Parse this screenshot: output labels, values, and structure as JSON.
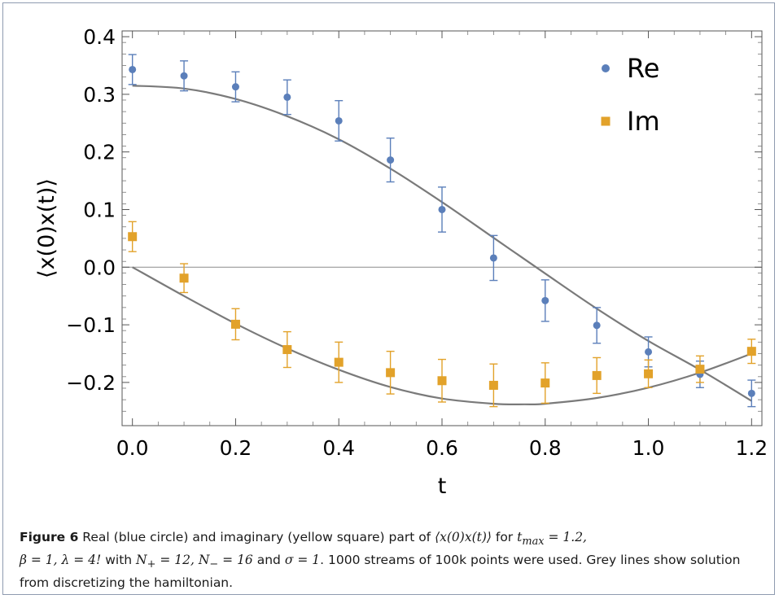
{
  "chart_data": {
    "type": "scatter",
    "xlabel": "t",
    "ylabel": "⟨x(0)x(t)⟩",
    "xlim": [
      -0.02,
      1.22
    ],
    "ylim": [
      -0.275,
      0.41
    ],
    "xticks": [
      0.0,
      0.2,
      0.4,
      0.6,
      0.8,
      1.0,
      1.2
    ],
    "xtick_labels": [
      "0.0",
      "0.2",
      "0.4",
      "0.6",
      "0.8",
      "1.0",
      "1.2"
    ],
    "yticks": [
      0.4,
      0.3,
      0.2,
      0.1,
      0.0,
      -0.1,
      -0.2
    ],
    "ytick_labels": [
      "0.4",
      "0.3",
      "0.2",
      "0.1",
      "0.0",
      "−0.1",
      "−0.2"
    ],
    "legend_position": "top-right",
    "series": [
      {
        "name": "Re",
        "marker": "circle",
        "color": "#5b7fba",
        "x": [
          0.0,
          0.1,
          0.2,
          0.3,
          0.4,
          0.5,
          0.6,
          0.7,
          0.8,
          0.9,
          1.0,
          1.1,
          1.2
        ],
        "y": [
          0.343,
          0.332,
          0.313,
          0.295,
          0.254,
          0.186,
          0.1,
          0.016,
          -0.058,
          -0.101,
          -0.147,
          -0.186,
          -0.219
        ],
        "err": [
          0.026,
          0.026,
          0.026,
          0.03,
          0.035,
          0.038,
          0.039,
          0.039,
          0.036,
          0.031,
          0.026,
          0.023,
          0.023
        ]
      },
      {
        "name": "Im",
        "marker": "square",
        "color": "#e2a22a",
        "x": [
          0.0,
          0.1,
          0.2,
          0.3,
          0.4,
          0.5,
          0.6,
          0.7,
          0.8,
          0.9,
          1.0,
          1.1,
          1.2
        ],
        "y": [
          0.053,
          -0.019,
          -0.099,
          -0.143,
          -0.165,
          -0.183,
          -0.197,
          -0.205,
          -0.201,
          -0.188,
          -0.185,
          -0.177,
          -0.146
        ],
        "err": [
          0.026,
          0.025,
          0.027,
          0.031,
          0.035,
          0.037,
          0.037,
          0.037,
          0.035,
          0.031,
          0.024,
          0.023,
          0.021
        ]
      }
    ],
    "curves": [
      {
        "color": "#7a7a7a",
        "x": [
          0.0,
          0.1,
          0.2,
          0.3,
          0.4,
          0.5,
          0.6,
          0.7,
          0.8,
          0.9,
          1.0,
          1.1,
          1.2
        ],
        "y": [
          0.315,
          0.31,
          0.292,
          0.262,
          0.222,
          0.171,
          0.113,
          0.051,
          -0.011,
          -0.072,
          -0.128,
          -0.178,
          -0.232
        ]
      },
      {
        "color": "#7a7a7a",
        "x": [
          0.0,
          0.1,
          0.2,
          0.3,
          0.4,
          0.5,
          0.6,
          0.7,
          0.76,
          0.8,
          0.9,
          1.0,
          1.1,
          1.2
        ],
        "y": [
          0.0,
          -0.05,
          -0.098,
          -0.141,
          -0.178,
          -0.208,
          -0.228,
          -0.237,
          -0.238,
          -0.237,
          -0.227,
          -0.209,
          -0.183,
          -0.15
        ]
      }
    ],
    "zero_line": {
      "y": 0.0,
      "color": "#999999"
    }
  },
  "caption": {
    "label": "Figure 6",
    "text_1": " Real (blue circle) and imaginary (yellow square) part of ",
    "math_1": "⟨x(0)x(t)⟩",
    "text_2": " for ",
    "math_2": "t",
    "math_2_sub": "max",
    "math_3": " = 1.2,",
    "math_4": "β = 1, λ = 4!",
    "text_3": " with ",
    "math_5": "N",
    "math_5_sub": "+",
    "math_6": " = 12, ",
    "math_7": "N",
    "math_7_sub": "−",
    "math_8": " = 16",
    "text_4": " and ",
    "math_9": "σ = 1",
    "text_5": ". 1000 streams of 100k points were used. Grey lines show solution from discretizing the hamiltonian."
  }
}
